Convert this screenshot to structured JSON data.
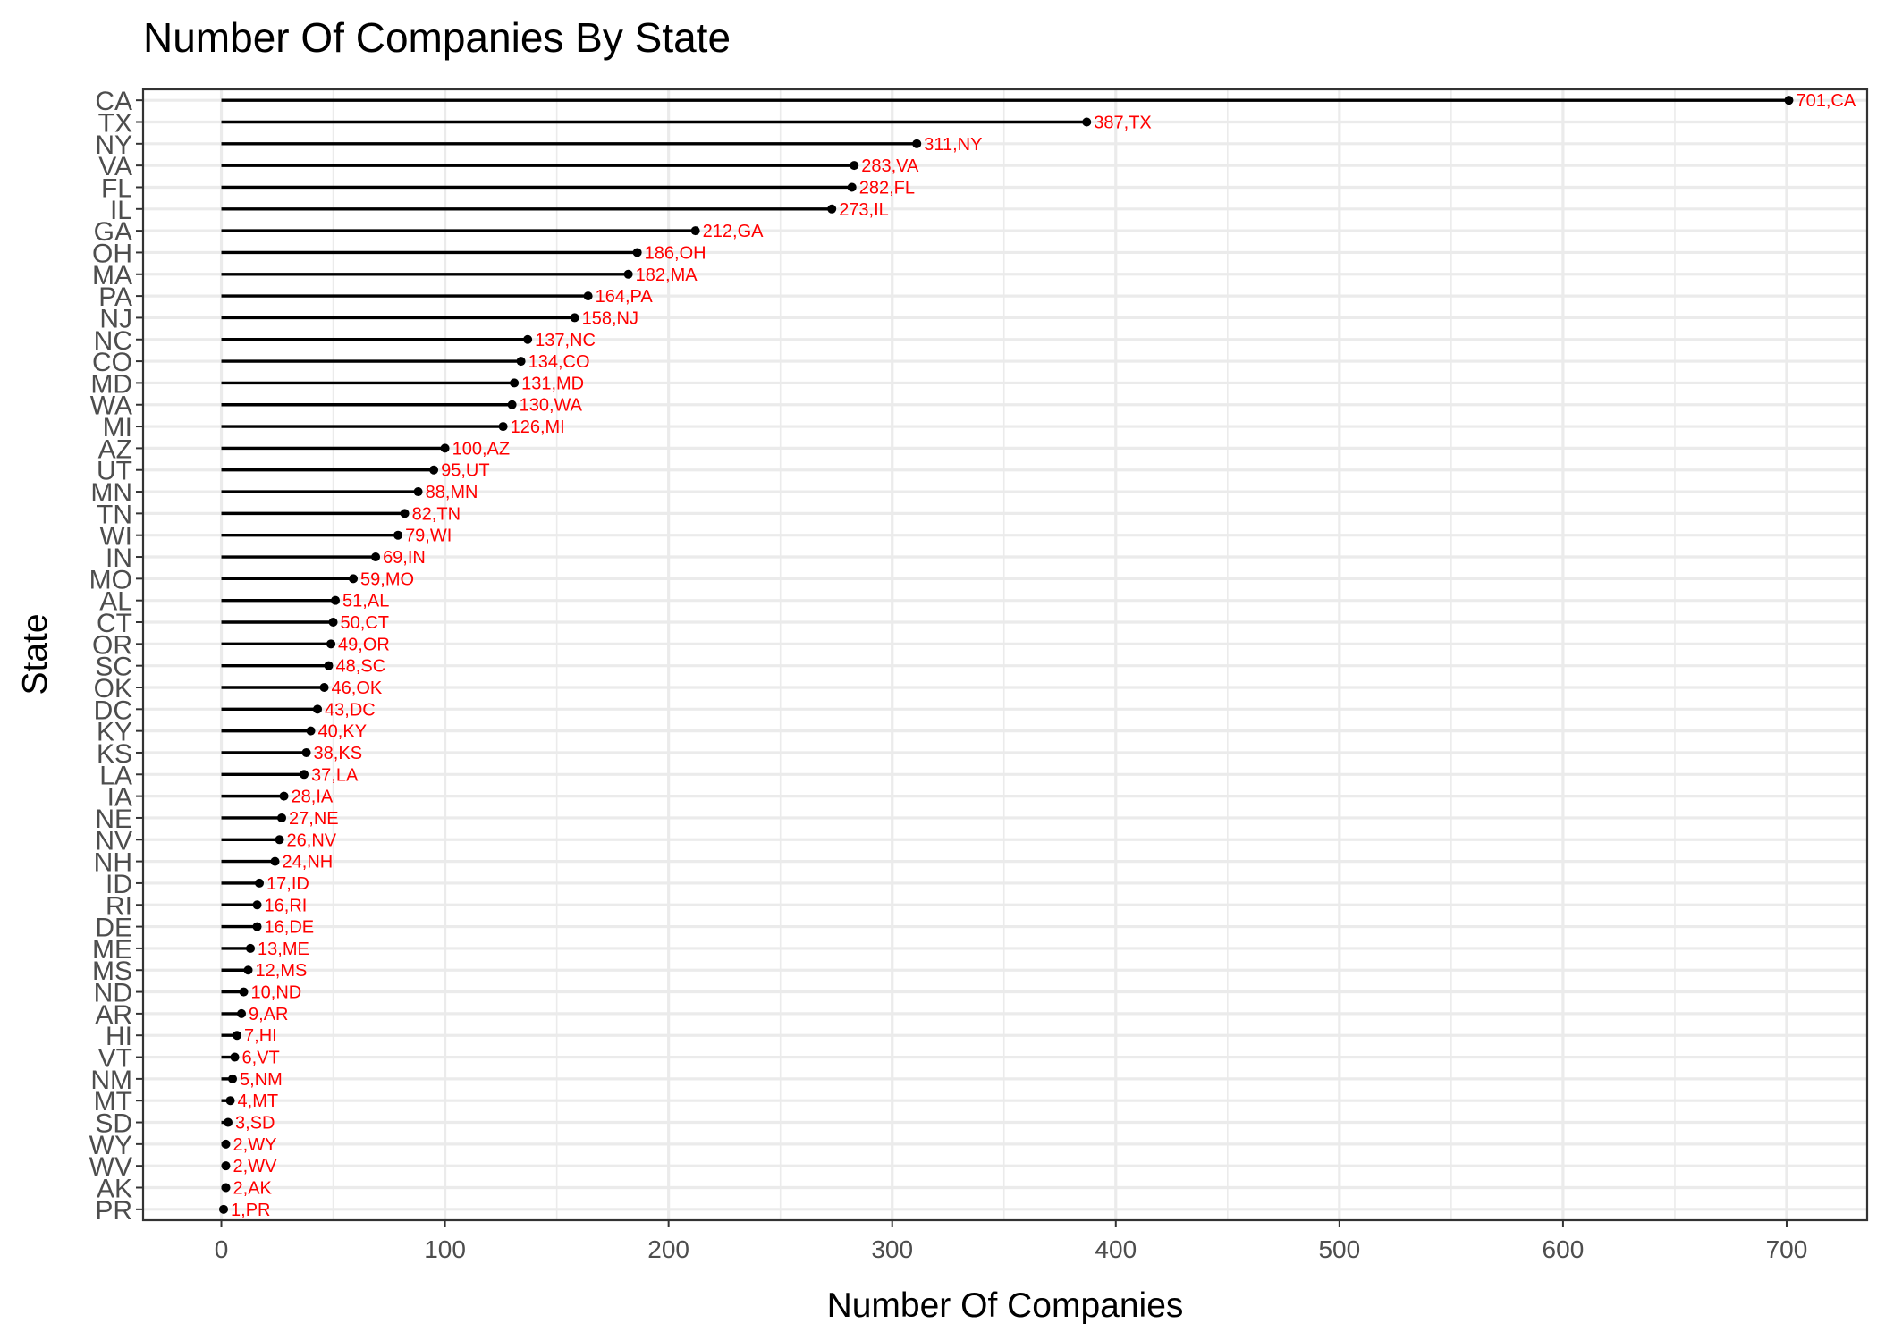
{
  "chart_data": {
    "type": "lollipop",
    "title": "Number Of Companies By State",
    "xlabel": "Number Of Companies",
    "ylabel": "State",
    "xlim": [
      -35,
      736
    ],
    "x_ticks": [
      0,
      100,
      200,
      300,
      400,
      500,
      600,
      700
    ],
    "x_tick_labels": [
      "0",
      "100",
      "200",
      "300",
      "400",
      "500",
      "600",
      "700"
    ],
    "grid": true,
    "colors": {
      "stem": "#000000",
      "point": "#000000",
      "label": "#ff0000",
      "panel_border": "#333333",
      "grid": "#ebebeb"
    },
    "categories": [
      "CA",
      "TX",
      "NY",
      "VA",
      "FL",
      "IL",
      "GA",
      "OH",
      "MA",
      "PA",
      "NJ",
      "NC",
      "CO",
      "MD",
      "WA",
      "MI",
      "AZ",
      "UT",
      "MN",
      "TN",
      "WI",
      "IN",
      "MO",
      "AL",
      "CT",
      "OR",
      "SC",
      "OK",
      "DC",
      "KY",
      "KS",
      "LA",
      "IA",
      "NE",
      "NV",
      "NH",
      "ID",
      "RI",
      "DE",
      "ME",
      "MS",
      "ND",
      "AR",
      "HI",
      "VT",
      "NM",
      "MT",
      "SD",
      "WY",
      "WV",
      "AK",
      "PR"
    ],
    "values": [
      701,
      387,
      311,
      283,
      282,
      273,
      212,
      186,
      182,
      164,
      158,
      137,
      134,
      131,
      130,
      126,
      100,
      95,
      88,
      82,
      79,
      69,
      59,
      51,
      50,
      49,
      48,
      46,
      43,
      40,
      38,
      37,
      28,
      27,
      26,
      24,
      17,
      16,
      16,
      13,
      12,
      10,
      9,
      7,
      6,
      5,
      4,
      3,
      2,
      2,
      2,
      1
    ],
    "point_labels": [
      "701,CA",
      "387,TX",
      "311,NY",
      "283,VA",
      "282,FL",
      "273,IL",
      "212,GA",
      "186,OH",
      "182,MA",
      "164,PA",
      "158,NJ",
      "137,NC",
      "134,CO",
      "131,MD",
      "130,WA",
      "126,MI",
      "100,AZ",
      "95,UT",
      "88,MN",
      "82,TN",
      "79,WI",
      "69,IN",
      "59,MO",
      "51,AL",
      "50,CT",
      "49,OR",
      "48,SC",
      "46,OK",
      "43,DC",
      "40,KY",
      "38,KS",
      "37,LA",
      "28,IA",
      "27,NE",
      "26,NV",
      "24,NH",
      "17,ID",
      "16,RI",
      "16,DE",
      "13,ME",
      "12,MS",
      "10,ND",
      "9,AR",
      "7,HI",
      "6,VT",
      "5,NM",
      "4,MT",
      "3,SD",
      "2,WY",
      "2,WV",
      "2,AK",
      "1,PR"
    ]
  }
}
